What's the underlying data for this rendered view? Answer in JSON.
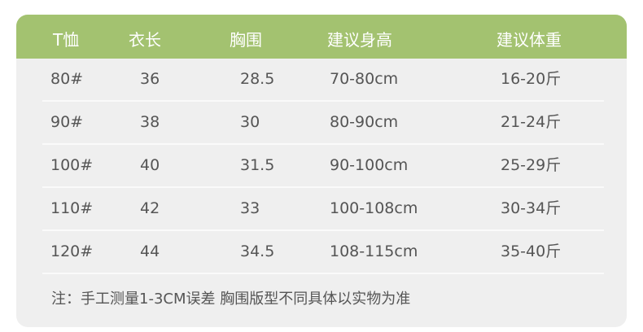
{
  "header": [
    "T恤",
    "衣长",
    "胸围",
    "建议身高",
    "建议体重"
  ],
  "rows": [
    [
      "80#",
      "36",
      "28.5",
      "70-80cm",
      "16-20斤"
    ],
    [
      "90#",
      "38",
      "30",
      "80-90cm",
      "21-24斤"
    ],
    [
      "100#",
      "40",
      "31.5",
      "90-100cm",
      "25-29斤"
    ],
    [
      "110#",
      "42",
      "33",
      "100-108cm",
      "30-34斤"
    ],
    [
      "120#",
      "44",
      "34.5",
      "108-115cm",
      "35-40斤"
    ]
  ],
  "note": "注：手工测量1-3CM误差  胸围版型不同具体以实物为准",
  "colors": {
    "header_bg": "#a3c270",
    "card_bg": "#efefef",
    "text": "#555555"
  }
}
